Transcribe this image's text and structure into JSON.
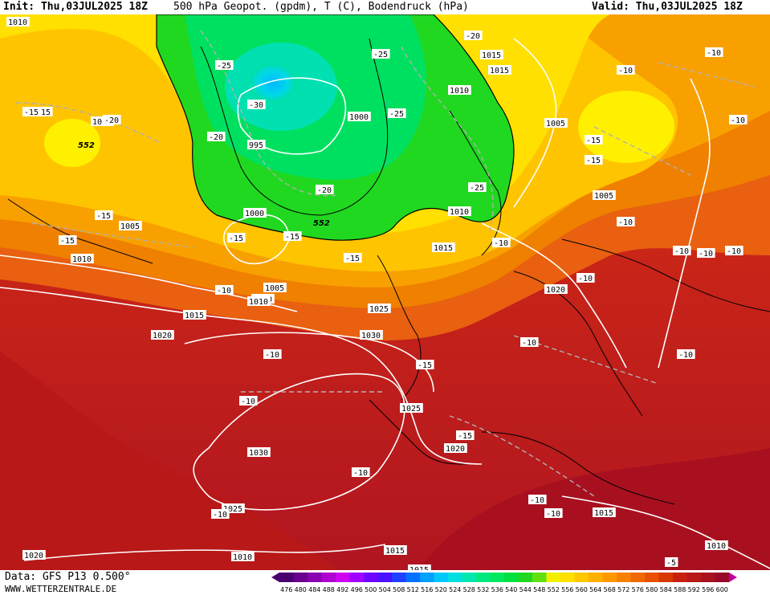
{
  "header": {
    "init": "Init: Thu,03JUL2025 18Z",
    "title": "500 hPa Geopot. (gpdm), T (C), Bodendruck (hPa)",
    "valid": "Valid: Thu,03JUL2025 18Z"
  },
  "footer": {
    "source": "Data: GFS P13 0.500°",
    "url": "WWW.WETTERZENTRALE.DE"
  },
  "colorscale": {
    "values": [
      "476",
      "480",
      "484",
      "488",
      "492",
      "496",
      "500",
      "504",
      "508",
      "512",
      "516",
      "520",
      "524",
      "528",
      "532",
      "536",
      "540",
      "544",
      "548",
      "552",
      "556",
      "560",
      "564",
      "568",
      "572",
      "576",
      "580",
      "584",
      "588",
      "592",
      "596",
      "600"
    ],
    "colors": [
      "#4b0070",
      "#6a0090",
      "#8a00b0",
      "#b000d0",
      "#d000f0",
      "#a000ff",
      "#7000ff",
      "#4a10ff",
      "#2040ff",
      "#0070ff",
      "#00a0ff",
      "#00c8ff",
      "#00e0e0",
      "#00e8b0",
      "#00e880",
      "#00e860",
      "#00e040",
      "#20d820",
      "#60e010",
      "#f0f000",
      "#ffe000",
      "#ffc800",
      "#ffb000",
      "#ff9800",
      "#f88000",
      "#f06800",
      "#e85000",
      "#d83800",
      "#c82010",
      "#b81818",
      "#a81020",
      "#980828"
    ]
  },
  "map_colors": {
    "geopotential_552_fill": "#20d820",
    "cold_core": "#00c8ff",
    "warm_ridge": "#c82010"
  },
  "pressure_labels": [
    "1010",
    "1010",
    "1015",
    "1005",
    "1000",
    "995",
    "1000",
    "1005",
    "1010",
    "1015",
    "1015",
    "1010",
    "1010",
    "1010",
    "1015",
    "1020",
    "1025",
    "1030",
    "1025",
    "1020",
    "1030",
    "1025",
    "1015",
    "1010",
    "1015",
    "1015",
    "1010",
    "1020",
    "1020",
    "1005",
    "1005",
    "1010"
  ],
  "temperature_labels": [
    "-20",
    "-25",
    "-25",
    "-30",
    "-20",
    "-25",
    "-20",
    "-25",
    "-15",
    "-20",
    "-15",
    "-15",
    "-15",
    "-15",
    "-10",
    "-15",
    "-10",
    "-10",
    "-10",
    "-15",
    "-10",
    "-10",
    "-10",
    "-10",
    "-15",
    "-10",
    "-15",
    "-10",
    "-10",
    "-10",
    "-10",
    "-5",
    "-10",
    "-10",
    "-10",
    "-10",
    "-15",
    "-15",
    "-10",
    "-15"
  ],
  "geopot_labels": [
    "552",
    "552"
  ]
}
